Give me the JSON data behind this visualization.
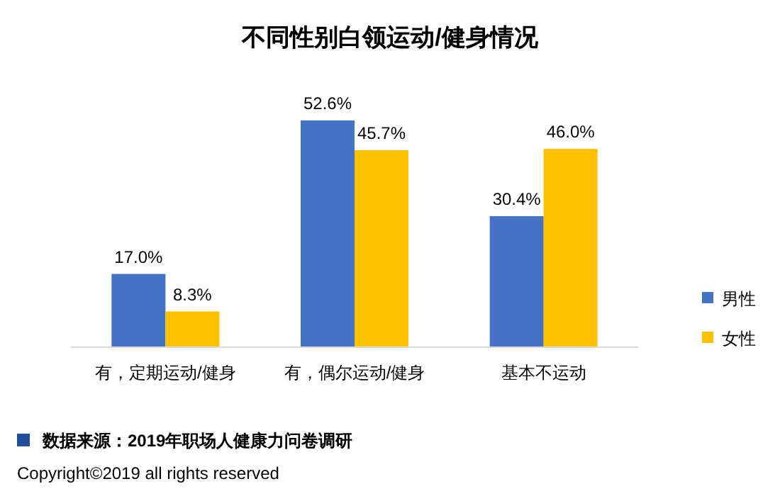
{
  "chart_data": {
    "type": "bar",
    "title": "不同性别白领运动/健身情况",
    "categories": [
      "有，定期运动/健身",
      "有，偶尔运动/健身",
      "基本不运动"
    ],
    "series": [
      {
        "name": "男性",
        "color": "#4472c4",
        "values": [
          17.0,
          52.6,
          30.4
        ],
        "value_labels": [
          "17.0%",
          "52.6%",
          "30.4%"
        ]
      },
      {
        "name": "女性",
        "color": "#ffc000",
        "values": [
          8.3,
          45.7,
          46.0
        ],
        "value_labels": [
          "8.3%",
          "45.7%",
          "46.0%"
        ]
      }
    ],
    "legend": "right",
    "annotations": [
      "数据来源：2019年职场人健康力问卷调研",
      "Copyright©2019 all rights reserved"
    ]
  }
}
